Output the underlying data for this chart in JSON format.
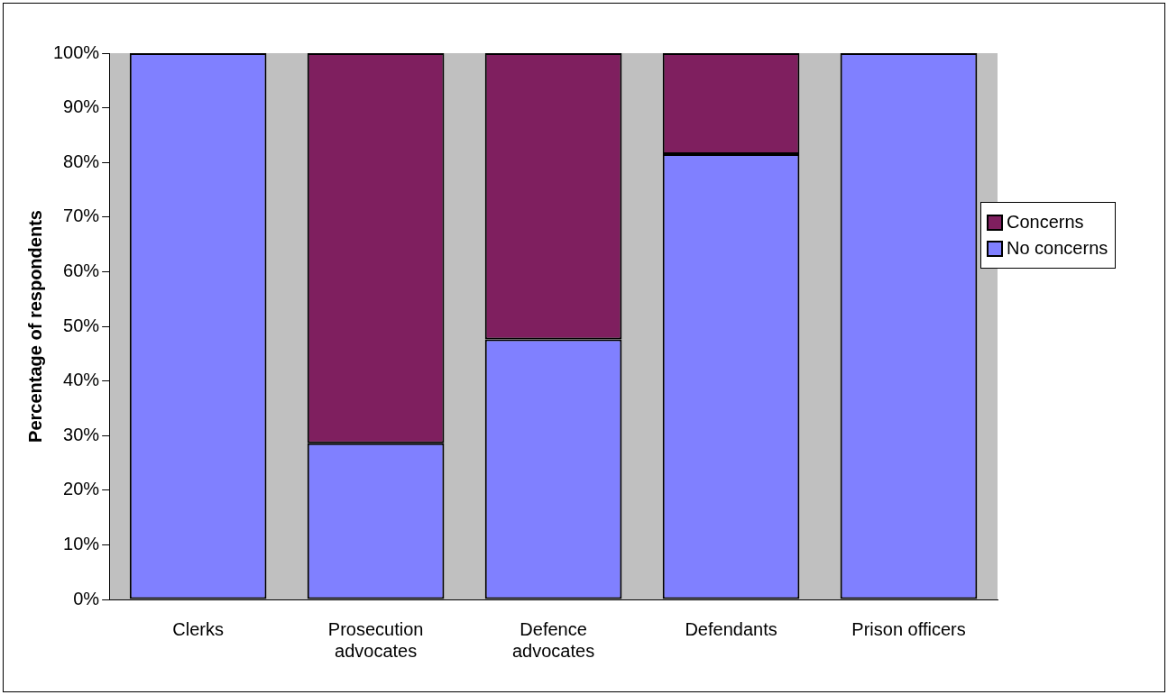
{
  "chart_data": {
    "type": "bar",
    "stacked": true,
    "ylabel": "Percentage of respondents",
    "categories": [
      "Clerks",
      "Prosecution advocates",
      "Defence advocates",
      "Defendants",
      "Prison officers"
    ],
    "series": [
      {
        "name": "No concerns",
        "color": "#8080ff",
        "values": [
          100,
          28.6,
          47.6,
          81.5,
          100
        ]
      },
      {
        "name": "Concerns",
        "color": "#7f1f5f",
        "values": [
          0,
          71.4,
          52.4,
          18.5,
          0
        ]
      }
    ],
    "ylim": [
      0,
      100
    ],
    "yticks": [
      {
        "value": 0,
        "label": "0%"
      },
      {
        "value": 10,
        "label": "10%"
      },
      {
        "value": 20,
        "label": "20%"
      },
      {
        "value": 30,
        "label": "30%"
      },
      {
        "value": 40,
        "label": "40%"
      },
      {
        "value": 50,
        "label": "50%"
      },
      {
        "value": 60,
        "label": "60%"
      },
      {
        "value": 70,
        "label": "70%"
      },
      {
        "value": 80,
        "label": "80%"
      },
      {
        "value": 90,
        "label": "90%"
      },
      {
        "value": 100,
        "label": "100%"
      }
    ],
    "grid": false,
    "legend": "right"
  }
}
